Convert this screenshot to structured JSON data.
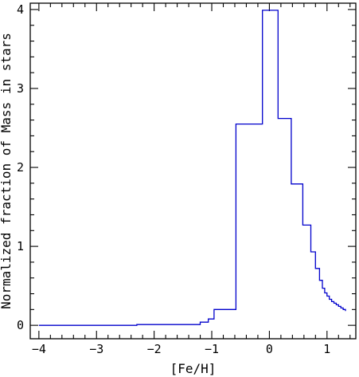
{
  "chart_data": {
    "type": "line",
    "drawstyle": "steps",
    "title": "",
    "xlabel": "[Fe/H]",
    "ylabel": "Normalized fraction of Mass in stars",
    "xlim": [
      -4.15,
      1.5
    ],
    "ylim": [
      -0.17,
      4.08
    ],
    "xticks": [
      -4,
      -3,
      -2,
      -1,
      0,
      1
    ],
    "xtick_labels": [
      "−4",
      "−3",
      "−2",
      "−1",
      "0",
      "1"
    ],
    "yticks": [
      0,
      1,
      2,
      3,
      4
    ],
    "ytick_labels": [
      "0",
      "1",
      "2",
      "3",
      "4"
    ],
    "grid": false,
    "legend": false,
    "series": [
      {
        "color": "#0000cc",
        "x": [
          -4.0,
          -2.3,
          -1.2,
          -1.12,
          -1.06,
          -0.96,
          -0.75,
          -0.58,
          -0.55,
          -0.35,
          -0.12,
          0.15,
          0.38,
          0.58,
          0.72,
          0.8,
          0.87,
          0.92,
          0.96,
          1.0,
          1.04,
          1.08,
          1.12,
          1.16,
          1.2,
          1.24,
          1.28,
          1.32
        ],
        "y": [
          0.0,
          0.01,
          0.04,
          0.04,
          0.08,
          0.2,
          0.2,
          2.55,
          2.55,
          2.55,
          3.99,
          2.62,
          1.79,
          1.27,
          0.93,
          0.72,
          0.57,
          0.47,
          0.41,
          0.37,
          0.33,
          0.3,
          0.28,
          0.26,
          0.24,
          0.22,
          0.2,
          0.18
        ]
      }
    ]
  }
}
